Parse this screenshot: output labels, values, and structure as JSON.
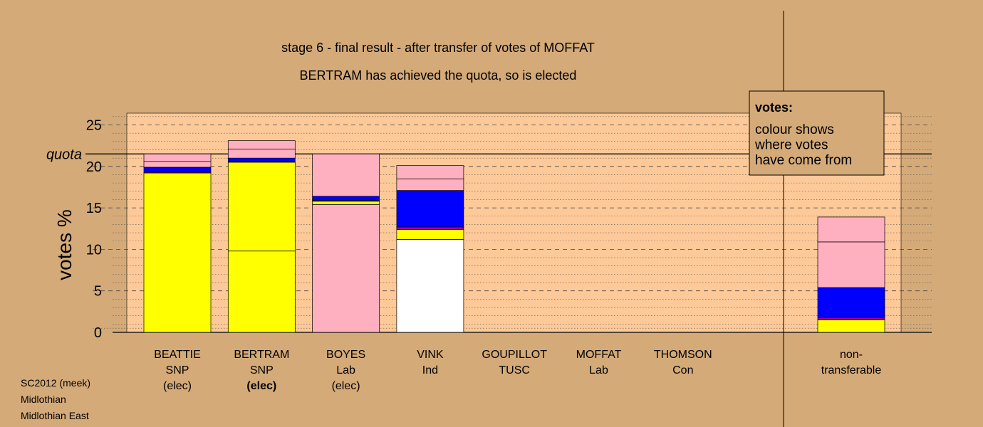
{
  "chart_data": {
    "type": "bar",
    "title": "stage 6 - final result - after transfer of votes of MOFFAT",
    "subtitle": "BERTRAM has achieved the quota, so is elected",
    "ylabel": "votes %",
    "ylim": [
      0,
      26.5
    ],
    "yticks": [
      0,
      5,
      10,
      15,
      20,
      25
    ],
    "quota": 21.5,
    "quota_label": "quota",
    "colors": {
      "background": "#d4aa78",
      "plot_area": "#fdc998",
      "snp": "#ffff00",
      "lab": "#ffb0c0",
      "ind": "#ffffff",
      "transfer_blue": "#0000ff",
      "transfer_purple": "#a000a0"
    },
    "legend": {
      "title": "votes:",
      "lines": [
        "colour shows",
        "where votes",
        "have come from"
      ]
    },
    "candidates": [
      {
        "name": "BEATTIE",
        "party": "SNP",
        "status": "(elec)",
        "bold_status": false,
        "segments": [
          {
            "value": 19.2,
            "color": "#ffff00"
          },
          {
            "value": 0.1,
            "color": "#a000a0"
          },
          {
            "value": 0.6,
            "color": "#0000ff"
          },
          {
            "value": 0.7,
            "color": "#ffb0c0"
          },
          {
            "value": 0.9,
            "color": "#ffb0c0"
          }
        ]
      },
      {
        "name": "BERTRAM",
        "party": "SNP",
        "status": "(elec)",
        "bold_status": true,
        "segments": [
          {
            "value": 9.8,
            "color": "#ffff00"
          },
          {
            "value": 10.7,
            "color": "#ffff00"
          },
          {
            "value": 0.1,
            "color": "#a000a0"
          },
          {
            "value": 0.4,
            "color": "#0000ff"
          },
          {
            "value": 1.1,
            "color": "#ffb0c0"
          },
          {
            "value": 1.0,
            "color": "#ffb0c0"
          }
        ]
      },
      {
        "name": "BOYES",
        "party": "Lab",
        "status": "(elec)",
        "bold_status": false,
        "segments": [
          {
            "value": 15.4,
            "color": "#ffb0c0"
          },
          {
            "value": 0.4,
            "color": "#ffff00"
          },
          {
            "value": 0.1,
            "color": "#a000a0"
          },
          {
            "value": 0.5,
            "color": "#0000ff"
          },
          {
            "value": 5.1,
            "color": "#ffb0c0"
          }
        ]
      },
      {
        "name": "VINK",
        "party": "Ind",
        "status": "",
        "bold_status": false,
        "segments": [
          {
            "value": 11.2,
            "color": "#ffffff"
          },
          {
            "value": 1.2,
            "color": "#ffff00"
          },
          {
            "value": 0.3,
            "color": "#a000a0"
          },
          {
            "value": 4.4,
            "color": "#0000ff"
          },
          {
            "value": 1.4,
            "color": "#ffb0c0"
          },
          {
            "value": 1.6,
            "color": "#ffb0c0"
          }
        ]
      },
      {
        "name": "GOUPILLOT",
        "party": "TUSC",
        "status": "",
        "bold_status": false,
        "segments": []
      },
      {
        "name": "MOFFAT",
        "party": "Lab",
        "status": "",
        "bold_status": false,
        "segments": []
      },
      {
        "name": "THOMSON",
        "party": "Con",
        "status": "",
        "bold_status": false,
        "segments": []
      }
    ],
    "nontransferable": {
      "label_line1": "non-",
      "label_line2": "transferable",
      "segments": [
        {
          "value": 1.5,
          "color": "#ffff00"
        },
        {
          "value": 0.3,
          "color": "#a000a0"
        },
        {
          "value": 3.6,
          "color": "#0000ff"
        },
        {
          "value": 5.5,
          "color": "#ffb0c0"
        },
        {
          "value": 3.0,
          "color": "#ffb0c0"
        }
      ]
    }
  },
  "footnotes": [
    "SC2012 (meek)",
    "Midlothian",
    "Midlothian East"
  ]
}
